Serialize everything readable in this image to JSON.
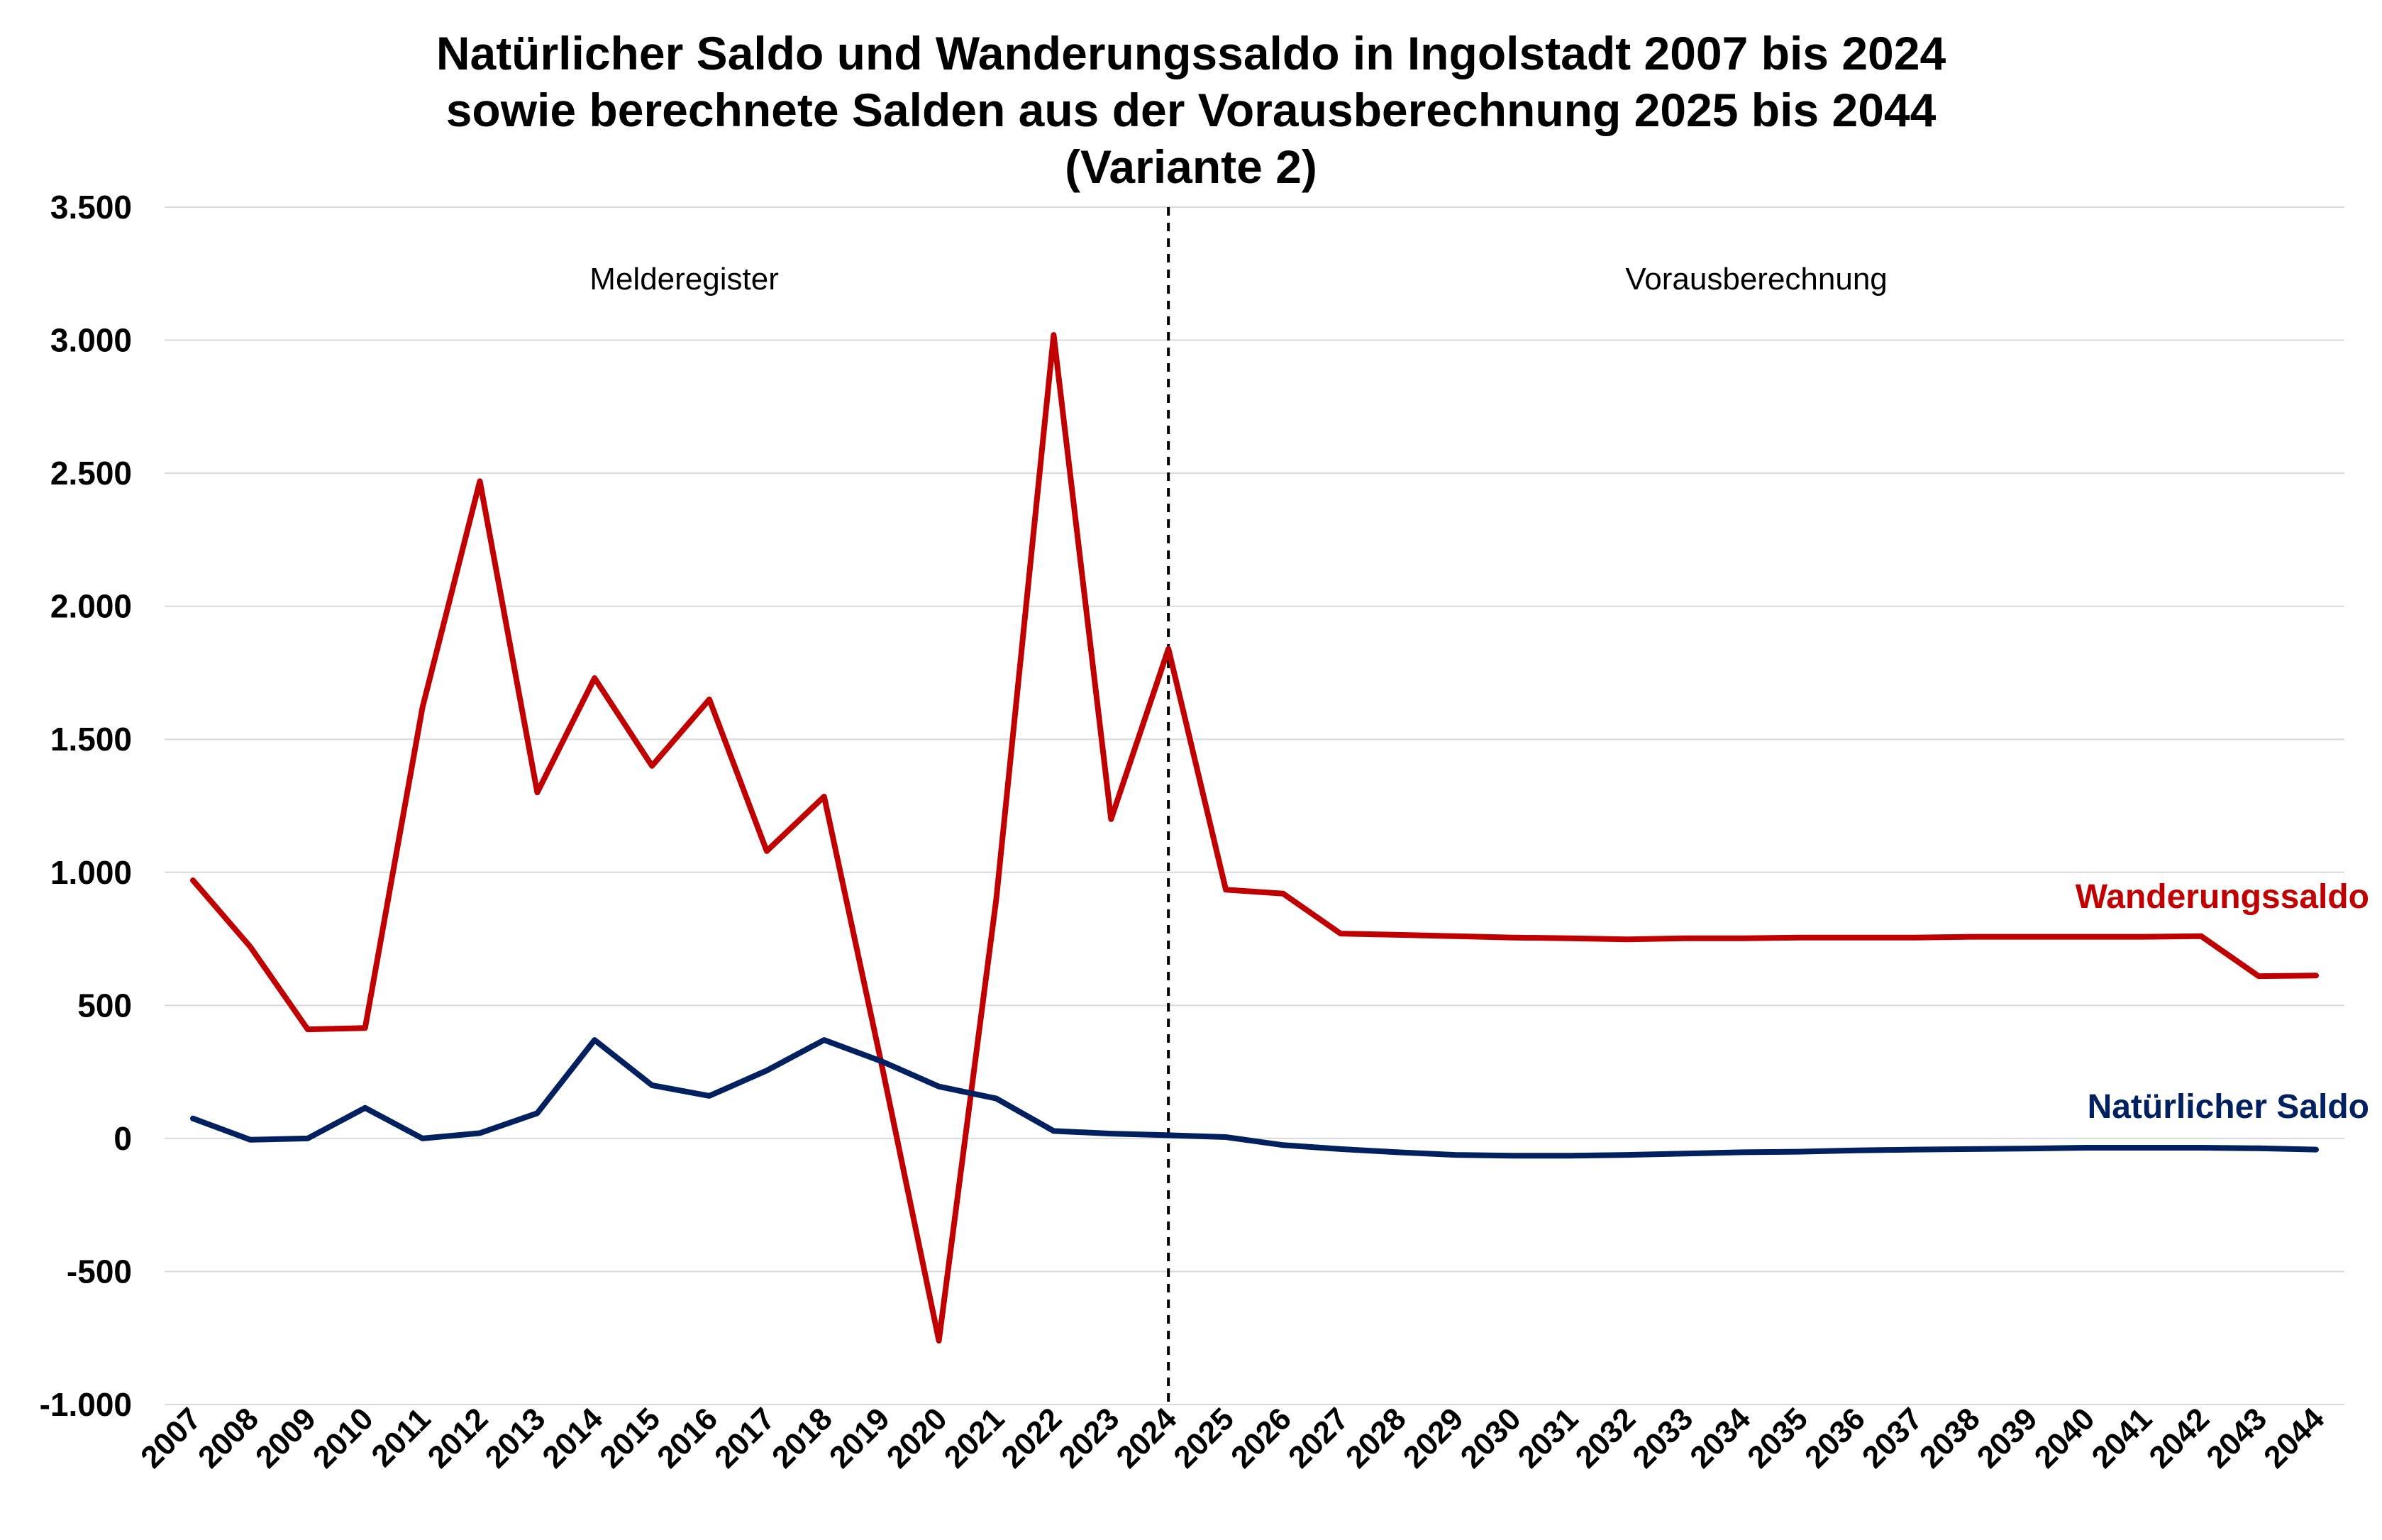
{
  "chart_data": {
    "type": "line",
    "title": [
      "Natürlicher Saldo und Wanderungssaldo in Ingolstadt 2007 bis 2024",
      "sowie berechnete Salden aus der Vorausberechnung 2025 bis 2044",
      "(Variante 2)"
    ],
    "xlabel": "",
    "ylabel": "",
    "ylim": [
      -1000,
      3500
    ],
    "yticks": [
      -1000,
      -500,
      0,
      500,
      1000,
      1500,
      2000,
      2500,
      3000,
      3500
    ],
    "ytick_labels": [
      "-1.000",
      "-500",
      "0",
      "500",
      "1.000",
      "1.500",
      "2.000",
      "2.500",
      "3.000",
      "3.500"
    ],
    "grid": "horizontal",
    "x": [
      "2007",
      "2008",
      "2009",
      "2010",
      "2011",
      "2012",
      "2013",
      "2014",
      "2015",
      "2016",
      "2017",
      "2018",
      "2019",
      "2020",
      "2021",
      "2022",
      "2023",
      "2024",
      "2025",
      "2026",
      "2027",
      "2028",
      "2029",
      "2030",
      "2031",
      "2032",
      "2033",
      "2034",
      "2035",
      "2036",
      "2037",
      "2038",
      "2039",
      "2040",
      "2041",
      "2042",
      "2043",
      "2044"
    ],
    "divider_at": "2024",
    "regions": {
      "left": "Melderegister",
      "right": "Vorausberechnung"
    },
    "series": [
      {
        "name": "Wanderungssaldo",
        "color": "#c00000",
        "values": [
          970,
          720,
          410,
          415,
          1620,
          2470,
          1300,
          1730,
          1400,
          1650,
          1080,
          1285,
          280,
          -760,
          900,
          3020,
          1200,
          1840,
          935,
          920,
          770,
          765,
          760,
          755,
          752,
          748,
          752,
          752,
          755,
          755,
          755,
          758,
          758,
          758,
          758,
          760,
          610,
          612
        ]
      },
      {
        "name": "Natürlicher Saldo",
        "color": "#002060",
        "values": [
          75,
          -5,
          0,
          115,
          0,
          20,
          95,
          370,
          200,
          160,
          255,
          370,
          290,
          195,
          150,
          28,
          18,
          12,
          5,
          -25,
          -40,
          -52,
          -62,
          -65,
          -65,
          -62,
          -57,
          -52,
          -50,
          -45,
          -42,
          -40,
          -38,
          -35,
          -35,
          -35,
          -37,
          -42
        ]
      }
    ]
  }
}
